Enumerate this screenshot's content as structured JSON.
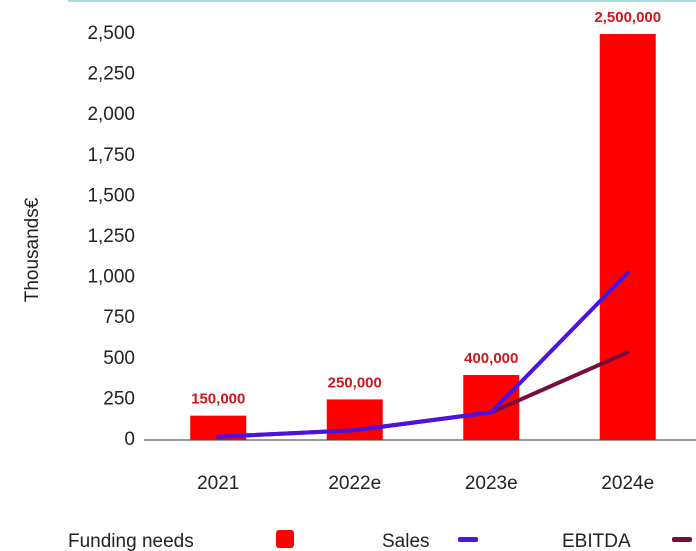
{
  "chart_data": {
    "type": "bar",
    "y_label": "Thousands€",
    "categories": [
      "2021",
      "2022e",
      "2023e",
      "2024e"
    ],
    "series": [
      {
        "name": "Funding needs",
        "type": "bar",
        "color": "#ff0000",
        "values": [
          150,
          250,
          400,
          2500
        ],
        "value_labels": [
          "150,000",
          "250,000",
          "400,000",
          "2,500,000"
        ]
      },
      {
        "name": "Sales",
        "type": "line",
        "color": "#4b12e0",
        "values": [
          20,
          60,
          170,
          1030
        ]
      },
      {
        "name": "EBITDA",
        "type": "line",
        "color": "#7a0b3e",
        "values": [
          20,
          60,
          170,
          540
        ]
      }
    ],
    "ylim": [
      0,
      2500
    ],
    "yticks": [
      0,
      250,
      500,
      750,
      {
        "value": 1000,
        "label": "1,000"
      },
      {
        "value": 1250,
        "label": "1,250"
      },
      {
        "value": 1500,
        "label": "1,500"
      },
      {
        "value": 1750,
        "label": "1,750"
      },
      {
        "value": 2000,
        "label": "2,000"
      },
      {
        "value": 2250,
        "label": "2,250"
      },
      {
        "value": 2500,
        "label": "2,500"
      }
    ],
    "grid": false
  }
}
